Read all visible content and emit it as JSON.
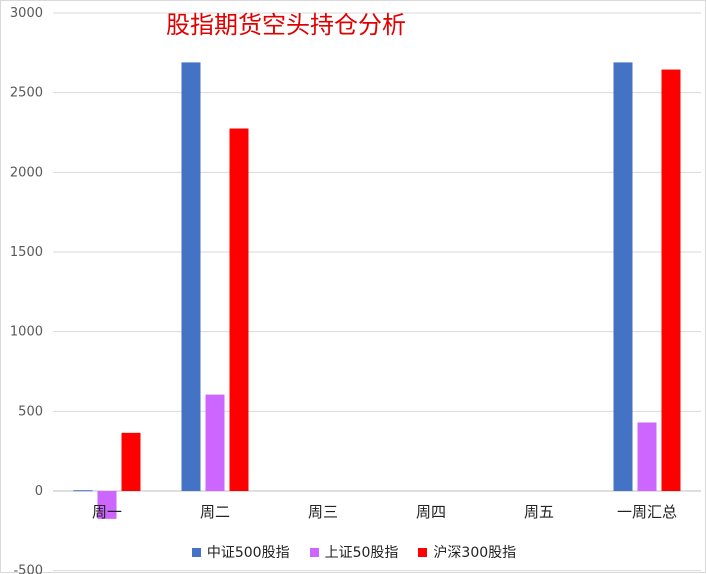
{
  "chart_data": {
    "type": "bar",
    "title": "股指期货空头持仓分析",
    "xlabel": "",
    "ylabel": "",
    "categories": [
      "周一",
      "周二",
      "周三",
      "周四",
      "周五",
      "一周汇总"
    ],
    "series": [
      {
        "name": "中证500股指",
        "color": "#4472C4",
        "values": [
          5,
          2690,
          0,
          0,
          0,
          2690
        ]
      },
      {
        "name": "上证50股指",
        "color": "#CC66FF",
        "values": [
          -175,
          605,
          0,
          0,
          0,
          430
        ]
      },
      {
        "name": "沪深300股指",
        "color": "#FF0000",
        "values": [
          365,
          2275,
          0,
          0,
          0,
          2645
        ]
      }
    ],
    "ylim": [
      -500,
      3000
    ],
    "yticks": [
      -500,
      0,
      500,
      1000,
      1500,
      2000,
      2500,
      3000
    ],
    "grid": true,
    "legend_position": "bottom"
  }
}
